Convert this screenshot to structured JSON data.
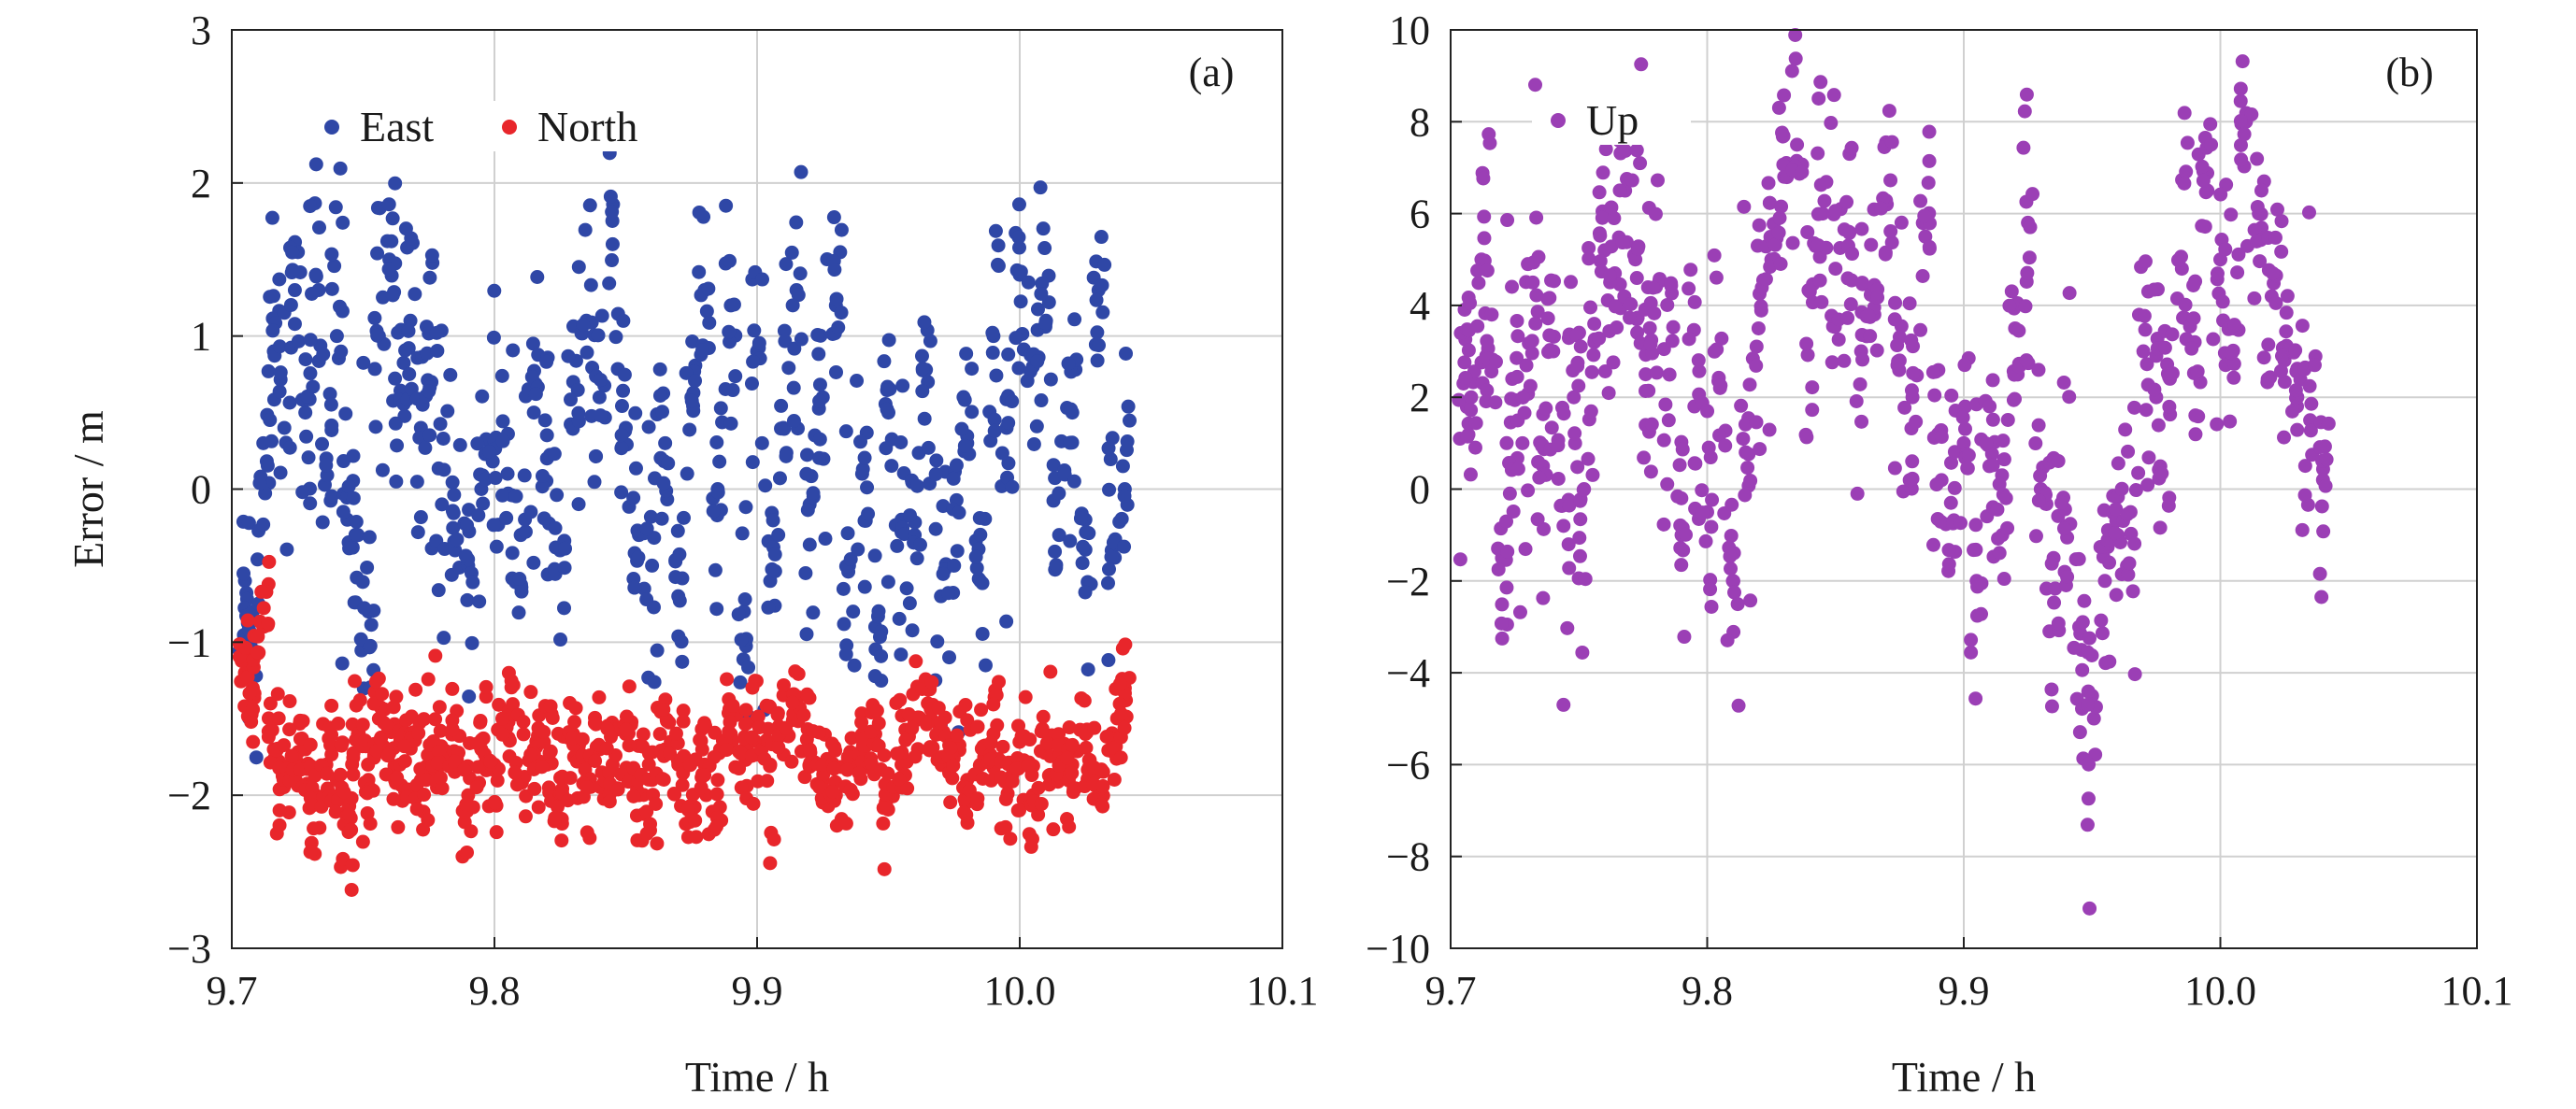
{
  "chart_data": [
    {
      "type": "scatter",
      "panel_label": "(a)",
      "xlabel": "Time / h",
      "ylabel": "Error / m",
      "xlim": [
        9.7,
        10.1
      ],
      "ylim": [
        -3,
        3
      ],
      "xticks": [
        "9.7",
        "9.8",
        "9.9",
        "10.0",
        "10.1"
      ],
      "yticks": [
        "3",
        "2",
        "1",
        "0",
        "−1",
        "−2",
        "−3"
      ],
      "grid": true,
      "legend_position": "top-left",
      "series": [
        {
          "name": "East",
          "color": "#2f47a6",
          "x": [
            9.705,
            9.708,
            9.712,
            9.716,
            9.72,
            9.724,
            9.728,
            9.732,
            9.736,
            9.74,
            9.744,
            9.748,
            9.752,
            9.756,
            9.76,
            9.764,
            9.768,
            9.772,
            9.776,
            9.78,
            9.785,
            9.79,
            9.795,
            9.8,
            9.805,
            9.81,
            9.815,
            9.82,
            9.825,
            9.83,
            9.835,
            9.84,
            9.845,
            9.85,
            9.855,
            9.86,
            9.865,
            9.87,
            9.875,
            9.88,
            9.885,
            9.89,
            9.895,
            9.9,
            9.905,
            9.91,
            9.915,
            9.92,
            9.925,
            9.93,
            9.935,
            9.94,
            9.945,
            9.95,
            9.955,
            9.96,
            9.965,
            9.97,
            9.975,
            9.98,
            9.985,
            9.99,
            9.995,
            10.0,
            10.005,
            10.01,
            10.015,
            10.02,
            10.025,
            10.03,
            10.035,
            10.04
          ],
          "y": [
            -0.6,
            -0.8,
            0.3,
            0.9,
            0.4,
            1.3,
            0.5,
            1.4,
            0.2,
            1.0,
            -0.2,
            -0.3,
            -0.8,
            1.0,
            1.5,
            0.6,
            1.1,
            0.4,
            0.7,
            -0.1,
            -0.4,
            -0.5,
            0.0,
            0.3,
            0.1,
            -0.3,
            0.5,
            0.2,
            -0.4,
            0.7,
            1.1,
            0.6,
            1.6,
            0.4,
            -0.3,
            -0.5,
            0.3,
            -0.7,
            0.6,
            1.3,
            0.0,
            1.2,
            -0.8,
            0.9,
            -0.6,
            0.4,
            1.3,
            -0.1,
            0.6,
            1.2,
            -0.5,
            0.1,
            -0.9,
            0.5,
            -0.2,
            -0.3,
            0.7,
            -0.7,
            -0.5,
            0.3,
            -0.6,
            1.0,
            0.4,
            1.4,
            0.8,
            1.1,
            -0.3,
            0.5,
            -0.2,
            1.3,
            -0.4,
            0.0
          ]
        },
        {
          "name": "North",
          "color": "#e8262b",
          "x": [
            9.705,
            9.708,
            9.712,
            9.716,
            9.72,
            9.724,
            9.728,
            9.732,
            9.736,
            9.74,
            9.744,
            9.748,
            9.752,
            9.756,
            9.76,
            9.764,
            9.768,
            9.772,
            9.776,
            9.78,
            9.785,
            9.79,
            9.795,
            9.8,
            9.805,
            9.81,
            9.815,
            9.82,
            9.825,
            9.83,
            9.835,
            9.84,
            9.845,
            9.85,
            9.855,
            9.86,
            9.865,
            9.87,
            9.875,
            9.88,
            9.885,
            9.89,
            9.895,
            9.9,
            9.905,
            9.91,
            9.915,
            9.92,
            9.925,
            9.93,
            9.935,
            9.94,
            9.945,
            9.95,
            9.955,
            9.96,
            9.965,
            9.97,
            9.975,
            9.98,
            9.985,
            9.99,
            9.995,
            10.0,
            10.005,
            10.01,
            10.015,
            10.02,
            10.025,
            10.03,
            10.035,
            10.04
          ],
          "y": [
            -1.2,
            -1.3,
            -0.9,
            -1.7,
            -1.9,
            -1.8,
            -1.7,
            -2.0,
            -1.8,
            -1.9,
            -2.1,
            -1.6,
            -1.9,
            -1.5,
            -1.7,
            -1.8,
            -1.6,
            -1.9,
            -1.7,
            -1.8,
            -1.6,
            -2.0,
            -1.7,
            -1.8,
            -1.5,
            -1.9,
            -1.7,
            -1.8,
            -2.0,
            -1.6,
            -1.9,
            -1.7,
            -1.8,
            -1.6,
            -2.0,
            -1.9,
            -1.7,
            -1.8,
            -2.1,
            -1.8,
            -1.9,
            -1.6,
            -1.7,
            -1.5,
            -1.8,
            -1.6,
            -1.4,
            -1.7,
            -1.9,
            -2.0,
            -1.8,
            -1.7,
            -1.6,
            -2.0,
            -1.8,
            -1.5,
            -1.4,
            -1.6,
            -1.7,
            -1.9,
            -1.8,
            -1.6,
            -1.9,
            -1.8,
            -2.0,
            -1.7,
            -1.9,
            -1.8,
            -1.6,
            -2.0,
            -1.7,
            -1.3
          ]
        }
      ]
    },
    {
      "type": "scatter",
      "panel_label": "(b)",
      "xlabel": "Time / h",
      "ylabel": "",
      "xlim": [
        9.7,
        10.1
      ],
      "ylim": [
        -10,
        10
      ],
      "xticks": [
        "9.7",
        "9.8",
        "9.9",
        "10.0",
        "10.1"
      ],
      "yticks": [
        "10",
        "8",
        "6",
        "4",
        "2",
        "0",
        "−2",
        "−4",
        "−6",
        "−8",
        "−10"
      ],
      "grid": true,
      "legend_position": "top-left",
      "series": [
        {
          "name": "Up",
          "color": "#9b3fb5",
          "x": [
            9.705,
            9.708,
            9.712,
            9.716,
            9.72,
            9.724,
            9.728,
            9.732,
            9.736,
            9.74,
            9.744,
            9.748,
            9.752,
            9.756,
            9.76,
            9.764,
            9.768,
            9.772,
            9.776,
            9.78,
            9.785,
            9.79,
            9.795,
            9.8,
            9.805,
            9.81,
            9.815,
            9.82,
            9.825,
            9.83,
            9.835,
            9.84,
            9.845,
            9.85,
            9.855,
            9.86,
            9.865,
            9.87,
            9.875,
            9.88,
            9.885,
            9.89,
            9.895,
            9.9,
            9.905,
            9.91,
            9.915,
            9.92,
            9.925,
            9.93,
            9.935,
            9.94,
            9.945,
            9.95,
            9.955,
            9.96,
            9.965,
            9.97,
            9.975,
            9.98,
            9.985,
            9.99,
            9.995,
            10.0,
            10.005,
            10.01,
            10.015,
            10.02,
            10.025,
            10.03,
            10.035,
            10.04
          ],
          "y": [
            2.3,
            2.0,
            5.0,
            3.8,
            -1.5,
            2.4,
            1.0,
            4.5,
            0.5,
            3.0,
            -0.8,
            2.0,
            0.0,
            3.2,
            5.2,
            4.7,
            6.5,
            5.0,
            2.5,
            4.4,
            1.5,
            -1.0,
            1.8,
            -0.5,
            2.2,
            -2.0,
            0.8,
            3.5,
            5.0,
            6.8,
            7.5,
            4.3,
            6.0,
            4.8,
            5.3,
            3.0,
            4.2,
            6.2,
            2.8,
            2.0,
            5.5,
            1.2,
            -0.3,
            1.0,
            -2.0,
            0.5,
            -1.0,
            3.5,
            5.8,
            0.0,
            -1.5,
            -0.8,
            -3.0,
            -4.5,
            -2.0,
            -1.0,
            -0.5,
            3.0,
            2.0,
            2.5,
            4.8,
            3.2,
            6.5,
            5.0,
            3.5,
            8.0,
            6.0,
            4.2,
            2.8,
            2.0,
            1.5,
            0.2
          ]
        }
      ]
    }
  ]
}
